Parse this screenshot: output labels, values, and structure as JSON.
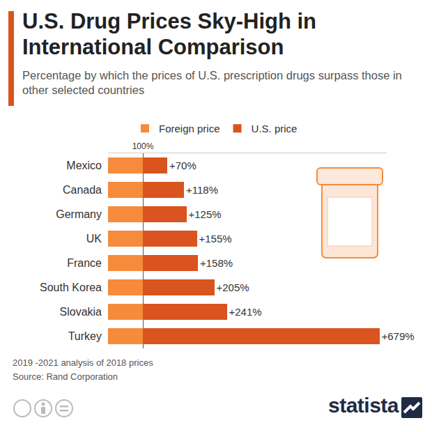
{
  "chart_data": {
    "type": "bar",
    "orientation": "horizontal",
    "stacked": true,
    "title": "U.S. Drug Prices Sky-High in International Comparison",
    "subtitle": "Percentage by which the prices of U.S. prescription drugs surpass those in other selected countries",
    "categories": [
      "Mexico",
      "Canada",
      "Germany",
      "UK",
      "France",
      "South Korea",
      "Slovakia",
      "Turkey"
    ],
    "series": [
      {
        "name": "Foreign price",
        "color": "#f68b3c",
        "values": [
          100,
          100,
          100,
          100,
          100,
          100,
          100,
          100
        ]
      },
      {
        "name": "U.S. price",
        "color": "#d9541e",
        "values": [
          70,
          118,
          125,
          155,
          158,
          205,
          241,
          679
        ],
        "value_labels": [
          "+70%",
          "+118%",
          "+125%",
          "+155%",
          "+158%",
          "+205%",
          "+241%",
          "+679%"
        ],
        "data_labels": true
      }
    ],
    "xlim": [
      0,
      800
    ],
    "xticks": [
      {
        "value": 100,
        "label": "100%"
      }
    ],
    "grid": true,
    "legend": "top",
    "notes": [
      "2019 -2021 analysis of 2018 prices",
      "Source: Rand Corporation"
    ],
    "brand": "statista"
  }
}
